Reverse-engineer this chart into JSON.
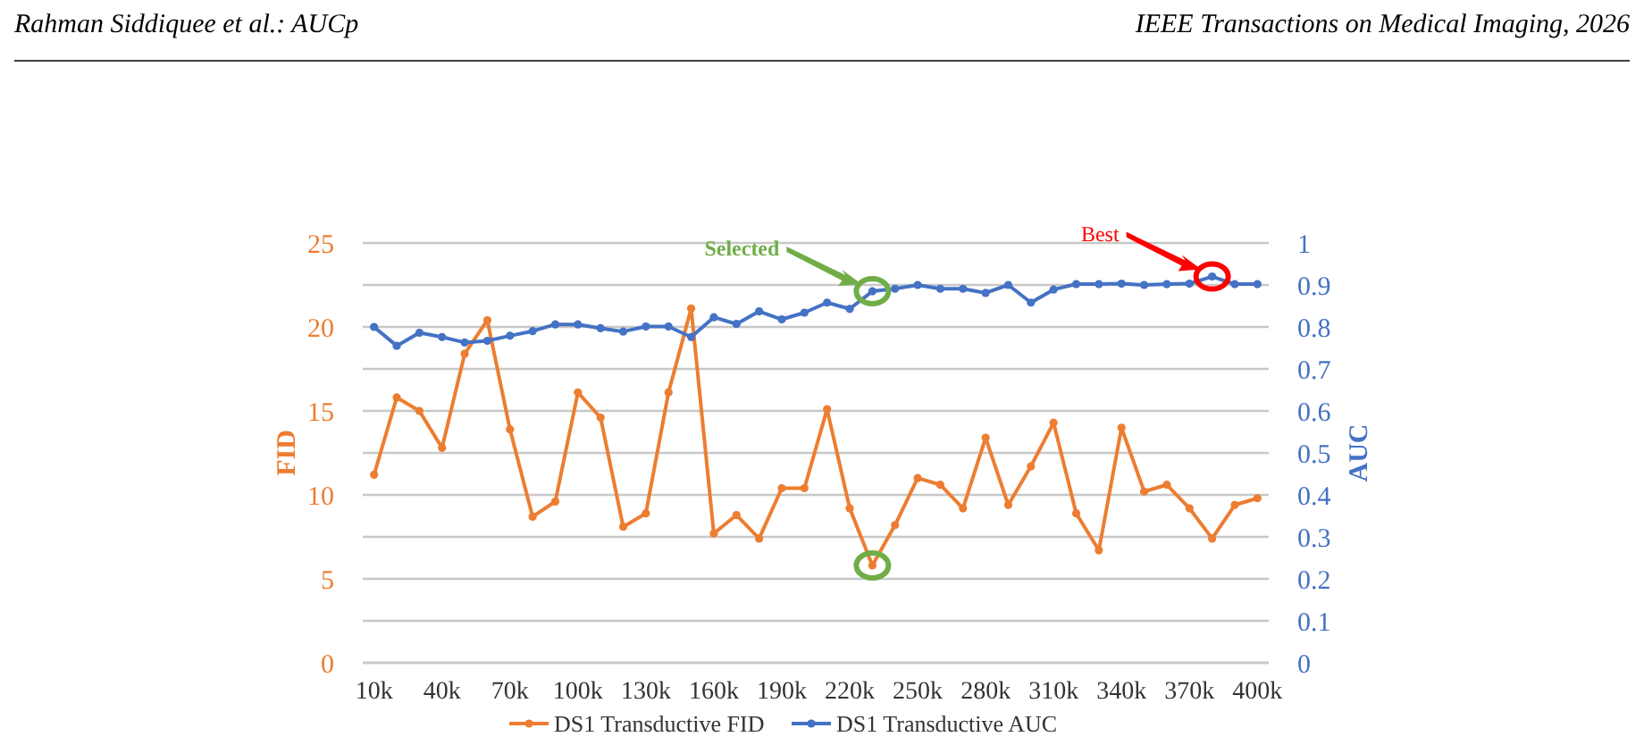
{
  "chart_data": {
    "type": "line",
    "x": [
      10,
      20,
      30,
      40,
      50,
      60,
      70,
      80,
      90,
      100,
      110,
      120,
      130,
      140,
      150,
      160,
      170,
      180,
      190,
      200,
      210,
      220,
      230,
      240,
      250,
      260,
      270,
      280,
      290,
      300,
      310,
      320,
      330,
      340,
      350,
      360,
      370,
      380,
      390,
      400
    ],
    "series": [
      {
        "name": "DS1 Transductive FID",
        "color": "#ed7d31",
        "values": [
          11.2,
          15.8,
          15.0,
          12.8,
          18.4,
          20.4,
          13.9,
          8.7,
          9.6,
          16.1,
          14.6,
          8.1,
          8.9,
          16.1,
          21.1,
          7.7,
          8.8,
          7.4,
          10.4,
          10.4,
          15.1,
          9.2,
          5.8,
          8.2,
          11.0,
          10.6,
          9.2,
          13.4,
          9.4,
          11.7,
          14.3,
          8.9,
          6.7,
          14.0,
          10.2,
          10.6,
          9.2,
          7.4,
          9.4,
          9.8
        ]
      },
      {
        "name": "DS1 Transductive AUC",
        "color": "#4472c4",
        "axis": "y2",
        "values": [
          0.8,
          0.755,
          0.786,
          0.776,
          0.763,
          0.767,
          0.779,
          0.79,
          0.806,
          0.806,
          0.797,
          0.789,
          0.801,
          0.801,
          0.776,
          0.823,
          0.807,
          0.837,
          0.818,
          0.834,
          0.858,
          0.843,
          0.885,
          0.891,
          0.9,
          0.891,
          0.891,
          0.881,
          0.9,
          0.858,
          0.889,
          0.902,
          0.902,
          0.903,
          0.9,
          0.902,
          0.903,
          0.92,
          0.902,
          0.902
        ]
      }
    ],
    "xlim": [
      5,
      405
    ],
    "xticks": [
      {
        "value": 10,
        "label": "10k"
      },
      {
        "value": 40,
        "label": "40k"
      },
      {
        "value": 70,
        "label": "70k"
      },
      {
        "value": 100,
        "label": "100k"
      },
      {
        "value": 130,
        "label": "130k"
      },
      {
        "value": 160,
        "label": "160k"
      },
      {
        "value": 190,
        "label": "190k"
      },
      {
        "value": 220,
        "label": "220k"
      },
      {
        "value": 250,
        "label": "250k"
      },
      {
        "value": 280,
        "label": "280k"
      },
      {
        "value": 310,
        "label": "310k"
      },
      {
        "value": 340,
        "label": "340k"
      },
      {
        "value": 370,
        "label": "370k"
      },
      {
        "value": 400,
        "label": "400k"
      }
    ],
    "ylim": [
      0,
      25
    ],
    "yticks": [
      0,
      {
        "value": 2.5,
        "label": null
      },
      5,
      {
        "value": 7.5,
        "label": null
      },
      10,
      {
        "value": 12.5,
        "label": null
      },
      15,
      {
        "value": 17.5,
        "label": null
      },
      20,
      {
        "value": 22.5,
        "label": null
      },
      25
    ],
    "y2lim": [
      0,
      1
    ],
    "y2ticks": [
      0,
      0.1,
      0.2,
      0.3,
      0.4,
      0.5,
      0.6,
      0.7,
      0.8,
      0.9,
      1
    ],
    "ylabel": "FID",
    "y2label": "AUC",
    "grid": "y",
    "legend": "bottom",
    "marker": "circle",
    "line_style": "solid",
    "annotations": [
      "Rahman Siddiquee et al.: AUCp",
      "IEEE Transactions on Medical Imaging, 2026",
      "Selected",
      "Best"
    ]
  }
}
